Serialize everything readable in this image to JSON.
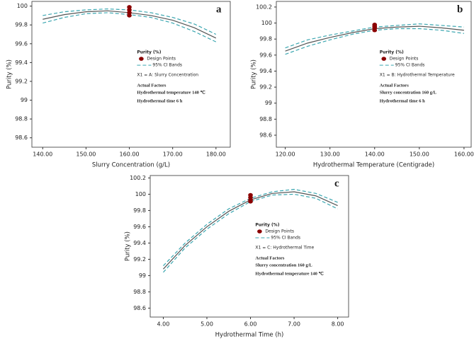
{
  "chart_data": [
    {
      "type": "line",
      "panel_label": "a",
      "xlabel": "Slurry Concentration (g/L)",
      "ylabel": "Purity (%)",
      "xlim": [
        137.5,
        183.3
      ],
      "ylim": [
        98.5,
        100.05
      ],
      "xticks": [
        {
          "value": 140,
          "label": "140.00"
        },
        {
          "value": 150,
          "label": "150.00"
        },
        {
          "value": 160,
          "label": "160.00"
        },
        {
          "value": 170,
          "label": "170.00"
        },
        {
          "value": 180,
          "label": "180.00"
        }
      ],
      "yticks": [
        98.6,
        98.8,
        99,
        99.2,
        99.4,
        99.6,
        99.8,
        100
      ],
      "x": [
        140,
        145,
        150,
        155,
        160,
        165,
        170,
        175,
        180
      ],
      "fit": {
        "color": "#555555",
        "values": [
          99.86,
          99.91,
          99.94,
          99.95,
          99.93,
          99.9,
          99.85,
          99.77,
          99.66
        ]
      },
      "ci_bands": {
        "name": "95% CI Bands",
        "color": "#3aa6b0",
        "lower": [
          99.82,
          99.88,
          99.92,
          99.93,
          99.91,
          99.88,
          99.82,
          99.73,
          99.62
        ],
        "upper": [
          99.9,
          99.94,
          99.96,
          99.97,
          99.96,
          99.93,
          99.88,
          99.81,
          99.7
        ]
      },
      "design_points": {
        "name": "Design Points",
        "color": "#8b0000",
        "x": [
          160,
          160,
          160,
          160
        ],
        "values": [
          99.99,
          99.96,
          99.93,
          99.9
        ]
      },
      "legend_title": "Purity (%)",
      "factor": "X1 = A: Slurry Concentration",
      "actual_factors": "Actual Factors",
      "factor_lines": [
        "Hydrothermal temperature 140 ℃",
        "Hydrothermal time 6 h"
      ]
    },
    {
      "type": "line",
      "panel_label": "b",
      "xlabel": "Hydrothermal Temperature (Centigrade)",
      "ylabel": "Purity (%)",
      "xlim": [
        118,
        161.6
      ],
      "ylim": [
        98.45,
        100.27
      ],
      "xticks": [
        {
          "value": 120,
          "label": "120.00"
        },
        {
          "value": 130,
          "label": "130.00"
        },
        {
          "value": 140,
          "label": "140.00"
        },
        {
          "value": 150,
          "label": "150.00"
        },
        {
          "value": 160,
          "label": "160.00"
        }
      ],
      "yticks": [
        98.6,
        98.8,
        99,
        99.2,
        99.4,
        99.6,
        99.8,
        100,
        100.2
      ],
      "x": [
        120,
        125,
        130,
        135,
        140,
        145,
        150,
        155,
        160
      ],
      "fit": {
        "color": "#555555",
        "values": [
          99.65,
          99.75,
          99.82,
          99.88,
          99.93,
          99.95,
          99.96,
          99.94,
          99.91
        ]
      },
      "ci_bands": {
        "name": "95% CI Bands",
        "color": "#3aa6b0",
        "lower": [
          99.61,
          99.71,
          99.79,
          99.86,
          99.91,
          99.93,
          99.93,
          99.91,
          99.87
        ],
        "upper": [
          99.69,
          99.79,
          99.85,
          99.9,
          99.95,
          99.97,
          99.99,
          99.97,
          99.95
        ]
      },
      "design_points": {
        "name": "Design Points",
        "color": "#8b0000",
        "x": [
          140,
          140,
          140,
          140
        ],
        "values": [
          99.98,
          99.96,
          99.94,
          99.91
        ]
      },
      "legend_title": "Purity (%)",
      "factor": "X1 = B: Hydrothermal Temperature",
      "actual_factors": "Actual Factors",
      "factor_lines": [
        "Slurry concentration 160 g/L",
        "Hydrothermal time 6 h"
      ]
    },
    {
      "type": "line",
      "panel_label": "c",
      "xlabel": "Hydrothermal Time (h)",
      "ylabel": "Purity (%)",
      "xlim": [
        3.7,
        8.25
      ],
      "ylim": [
        98.49,
        100.23
      ],
      "xticks": [
        {
          "value": 4,
          "label": "4.00"
        },
        {
          "value": 5,
          "label": "5.00"
        },
        {
          "value": 6,
          "label": "6.00"
        },
        {
          "value": 7,
          "label": "7.00"
        },
        {
          "value": 8,
          "label": "8.00"
        }
      ],
      "yticks": [
        98.6,
        98.8,
        99,
        99.2,
        99.4,
        99.6,
        99.8,
        100,
        100.2
      ],
      "x": [
        4,
        4.5,
        5,
        5.5,
        6,
        6.5,
        7,
        7.5,
        8
      ],
      "fit": {
        "color": "#555555",
        "values": [
          99.08,
          99.37,
          99.6,
          99.79,
          99.93,
          100.01,
          100.03,
          99.98,
          99.86
        ]
      },
      "ci_bands": {
        "name": "95% CI Bands",
        "color": "#3aa6b0",
        "lower": [
          99.04,
          99.34,
          99.57,
          99.76,
          99.91,
          99.99,
          100.0,
          99.95,
          99.82
        ],
        "upper": [
          99.12,
          99.4,
          99.63,
          99.82,
          99.95,
          100.03,
          100.06,
          100.01,
          99.9
        ]
      },
      "design_points": {
        "name": "Design Points",
        "color": "#8b0000",
        "x": [
          6,
          6,
          6,
          6
        ],
        "values": [
          99.99,
          99.96,
          99.93,
          99.91
        ]
      },
      "legend_title": "Purity (%)",
      "factor": "X1 = C: Hydrothermal Time",
      "actual_factors": "Actual Factors",
      "factor_lines": [
        "Slurry concentration 160 g/L",
        "Hydrothermal temperature 140 ℃"
      ]
    }
  ]
}
